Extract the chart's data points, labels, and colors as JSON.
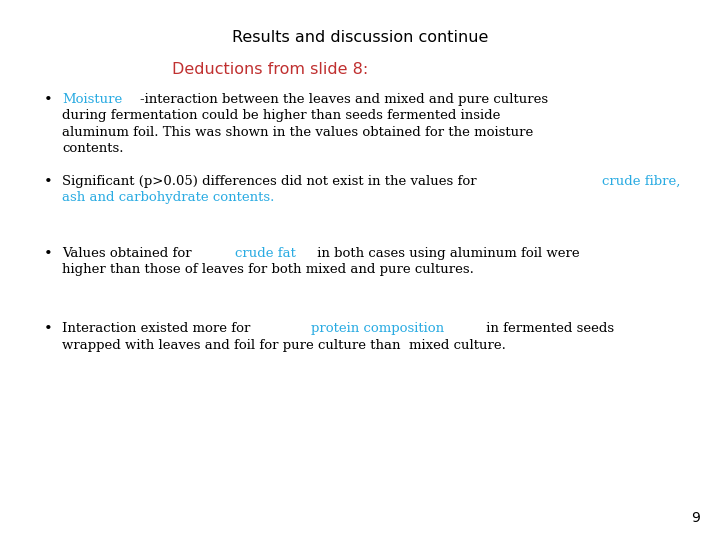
{
  "title": "Results and discussion continue",
  "title_color": "#000000",
  "title_fontsize": 11.5,
  "subtitle": "Deductions from slide 8:",
  "subtitle_color": "#c03030",
  "subtitle_fontsize": 11.5,
  "background_color": "#ffffff",
  "page_number": "9",
  "cyan_color": "#29abe2",
  "black_color": "#000000",
  "bullet_fontsize": 9.5
}
